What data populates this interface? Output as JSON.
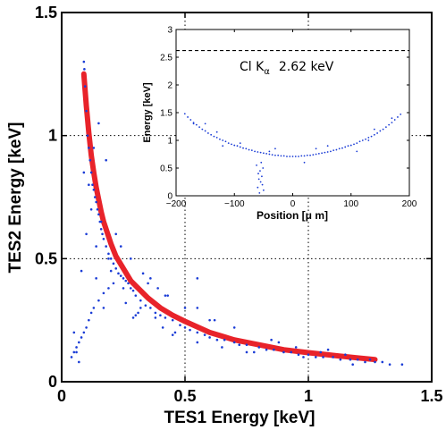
{
  "chart_data": [
    {
      "type": "scatter",
      "xlabel": "TES1 Energy [keV]",
      "ylabel": "TES2 Energy [keV]",
      "xlim": [
        0,
        1.5
      ],
      "ylim": [
        0,
        1.5
      ],
      "xticks": [
        0,
        0.5,
        1,
        1.5
      ],
      "yticks": [
        0,
        0.5,
        1,
        1.5
      ],
      "xtick_labels": [
        "0",
        "0.5",
        "1",
        "1.5"
      ],
      "ytick_labels": [
        "0",
        "0.5",
        "1",
        "1.5"
      ],
      "grid": "dotted",
      "colors": {
        "points": "#1a3cd6",
        "curve": "#e8232a"
      },
      "series": [
        {
          "kind": "line",
          "x": [
            0.09,
            0.1,
            0.11,
            0.12,
            0.13,
            0.14,
            0.15,
            0.16,
            0.17,
            0.18,
            0.2,
            0.22,
            0.25,
            0.28,
            0.3,
            0.35,
            0.4,
            0.45,
            0.5,
            0.6,
            0.7,
            0.8,
            0.9,
            1.0,
            1.1,
            1.2,
            1.27
          ],
          "y": [
            1.25,
            1.12,
            1.01,
            0.92,
            0.85,
            0.79,
            0.74,
            0.69,
            0.65,
            0.62,
            0.56,
            0.51,
            0.46,
            0.41,
            0.39,
            0.34,
            0.3,
            0.27,
            0.245,
            0.2,
            0.17,
            0.15,
            0.13,
            0.118,
            0.107,
            0.097,
            0.09
          ]
        },
        {
          "kind": "scatter",
          "x": [
            0.09,
            0.092,
            0.095,
            0.1,
            0.105,
            0.11,
            0.115,
            0.12,
            0.125,
            0.13,
            0.135,
            0.14,
            0.145,
            0.15,
            0.155,
            0.16,
            0.165,
            0.17,
            0.18,
            0.19,
            0.2,
            0.21,
            0.22,
            0.23,
            0.24,
            0.25,
            0.26,
            0.27,
            0.28,
            0.29,
            0.3,
            0.32,
            0.34,
            0.36,
            0.38,
            0.4,
            0.42,
            0.45,
            0.48,
            0.5,
            0.52,
            0.55,
            0.58,
            0.6,
            0.63,
            0.66,
            0.7,
            0.72,
            0.75,
            0.8,
            0.83,
            0.86,
            0.9,
            0.93,
            0.96,
            1.0,
            1.03,
            1.06,
            1.1,
            1.13,
            1.17,
            1.2,
            1.23,
            1.27,
            1.3,
            1.33,
            1.38,
            0.04,
            0.05,
            0.06,
            0.07,
            0.08,
            0.09,
            0.1,
            0.11,
            0.12,
            0.13,
            0.15,
            0.17,
            0.19,
            0.21,
            0.08,
            0.1,
            0.12,
            0.14,
            0.16,
            0.09,
            0.11,
            0.13,
            0.15,
            0.18,
            0.2,
            0.22,
            0.25,
            0.28,
            0.32,
            0.35,
            0.38,
            0.42,
            0.46,
            0.5,
            0.55,
            0.6,
            0.65,
            0.7,
            0.75,
            0.85,
            0.95,
            1.05,
            1.15,
            1.25,
            0.24,
            0.3,
            0.36,
            0.45,
            0.62,
            0.78,
            0.88,
            0.98,
            1.08,
            1.18,
            0.14,
            0.17,
            0.19,
            0.26,
            0.33,
            0.41,
            0.55,
            0.07,
            0.06,
            0.05,
            0.55,
            0.43,
            0.39,
            0.29,
            0.31
          ],
          "y": [
            1.3,
            1.27,
            1.2,
            1.1,
            1.0,
            0.95,
            0.9,
            0.85,
            0.8,
            0.78,
            0.75,
            0.73,
            0.7,
            0.68,
            0.65,
            0.62,
            0.6,
            0.58,
            0.55,
            0.52,
            0.5,
            0.48,
            0.46,
            0.44,
            0.43,
            0.42,
            0.41,
            0.4,
            0.38,
            0.37,
            0.35,
            0.33,
            0.31,
            0.3,
            0.28,
            0.27,
            0.26,
            0.25,
            0.23,
            0.22,
            0.21,
            0.2,
            0.19,
            0.18,
            0.17,
            0.17,
            0.16,
            0.15,
            0.15,
            0.14,
            0.13,
            0.13,
            0.12,
            0.12,
            0.11,
            0.11,
            0.1,
            0.1,
            0.1,
            0.09,
            0.09,
            0.09,
            0.08,
            0.08,
            0.08,
            0.07,
            0.07,
            0.1,
            0.12,
            0.14,
            0.16,
            0.18,
            0.2,
            0.22,
            0.25,
            0.28,
            0.3,
            0.33,
            0.36,
            0.38,
            0.4,
            0.45,
            0.6,
            0.7,
            0.55,
            0.65,
            0.85,
            0.8,
            0.95,
            1.05,
            0.9,
            0.45,
            0.6,
            0.38,
            0.5,
            0.3,
            0.4,
            0.26,
            0.35,
            0.2,
            0.3,
            0.16,
            0.25,
            0.14,
            0.22,
            0.12,
            0.17,
            0.14,
            0.12,
            0.11,
            0.09,
            0.55,
            0.27,
            0.42,
            0.19,
            0.25,
            0.12,
            0.16,
            0.1,
            0.13,
            0.07,
            0.42,
            0.3,
            0.5,
            0.32,
            0.44,
            0.22,
            0.3,
            0.08,
            0.12,
            0.2,
            0.42,
            0.35,
            0.38,
            0.26,
            0.28
          ]
        }
      ]
    },
    {
      "type": "scatter",
      "xlabel": "Position [μ m]",
      "ylabel": "Energy [keV]",
      "xlim": [
        -200,
        200
      ],
      "ylim": [
        0,
        3
      ],
      "xticks": [
        -200,
        -100,
        0,
        100,
        200
      ],
      "yticks": [
        0,
        0.5,
        1,
        1.5,
        2,
        2.5,
        3
      ],
      "xtick_labels": [
        "−200",
        "−100",
        "0",
        "100",
        "200"
      ],
      "ytick_labels": [
        "0",
        "0.5",
        "1",
        "1.5",
        "2",
        "2.5",
        "3"
      ],
      "reference_line": {
        "y": 2.62,
        "style": "dashed"
      },
      "annotation": {
        "text": "Cl K",
        "subscript": "α",
        "value_text": "2.62 keV"
      },
      "colors": {
        "points": "#1a3cd6"
      },
      "series": [
        {
          "kind": "scatter",
          "x": [
            -185,
            -180,
            -175,
            -170,
            -165,
            -160,
            -155,
            -150,
            -145,
            -140,
            -135,
            -130,
            -125,
            -120,
            -115,
            -110,
            -105,
            -100,
            -95,
            -90,
            -85,
            -80,
            -75,
            -70,
            -65,
            -60,
            -55,
            -50,
            -45,
            -40,
            -35,
            -30,
            -25,
            -20,
            -15,
            -10,
            -5,
            0,
            5,
            10,
            15,
            20,
            25,
            30,
            35,
            40,
            45,
            50,
            55,
            60,
            65,
            70,
            75,
            80,
            85,
            90,
            95,
            100,
            105,
            110,
            115,
            120,
            125,
            130,
            135,
            140,
            145,
            150,
            155,
            160,
            165,
            170,
            175,
            180,
            185,
            -60,
            -58,
            -56,
            -54,
            -52,
            -50,
            -62,
            -57,
            -53,
            -55,
            -59,
            -51,
            -150,
            -120,
            -90,
            -30,
            20,
            60,
            110,
            140,
            170,
            -170,
            -130,
            -40,
            40,
            130
          ],
          "y": [
            1.48,
            1.42,
            1.37,
            1.32,
            1.28,
            1.24,
            1.2,
            1.17,
            1.13,
            1.1,
            1.07,
            1.05,
            1.02,
            1.0,
            0.98,
            0.95,
            0.93,
            0.91,
            0.9,
            0.88,
            0.86,
            0.85,
            0.83,
            0.82,
            0.8,
            0.79,
            0.78,
            0.77,
            0.76,
            0.75,
            0.74,
            0.73,
            0.73,
            0.72,
            0.72,
            0.71,
            0.71,
            0.71,
            0.71,
            0.71,
            0.72,
            0.72,
            0.73,
            0.73,
            0.74,
            0.75,
            0.76,
            0.77,
            0.78,
            0.79,
            0.8,
            0.82,
            0.83,
            0.85,
            0.86,
            0.88,
            0.9,
            0.91,
            0.93,
            0.95,
            0.98,
            1.0,
            1.02,
            1.05,
            1.07,
            1.1,
            1.13,
            1.17,
            1.2,
            1.24,
            1.28,
            1.32,
            1.37,
            1.42,
            1.47,
            0.15,
            0.3,
            0.45,
            0.6,
            0.2,
            0.1,
            0.55,
            0.05,
            0.35,
            0.25,
            0.4,
            0.5,
            1.3,
            0.9,
            0.95,
            0.85,
            0.6,
            0.9,
            0.8,
            1.2,
            1.4,
            1.3,
            1.15,
            0.8,
            0.85,
            1.0
          ]
        }
      ]
    }
  ]
}
